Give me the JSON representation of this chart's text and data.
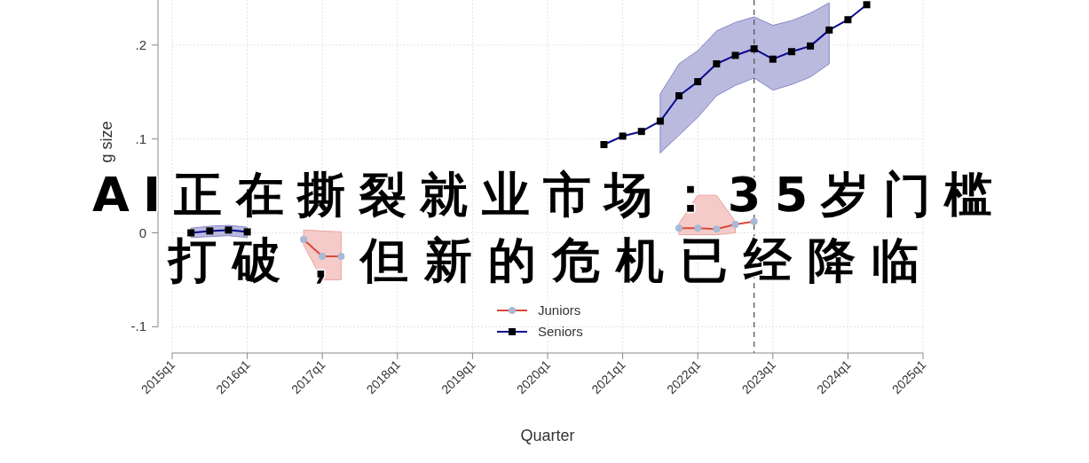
{
  "chart_data": {
    "type": "line",
    "title": "AI正在撕裂就业市场：35岁门槛",
    "subtitle": "打破，但新的危机已经降临",
    "xlabel": "Quarter",
    "ylabel": "g size",
    "xlim": [
      "2015-01",
      "2025-01"
    ],
    "ylim": [
      -0.128,
      0.248
    ],
    "xticks": [
      {
        "value": "2015-01",
        "label": "2015q1"
      },
      {
        "value": "2016-01",
        "label": "2016q1"
      },
      {
        "value": "2017-01",
        "label": "2017q1"
      },
      {
        "value": "2018-01",
        "label": "2018q1"
      },
      {
        "value": "2019-01",
        "label": "2019q1"
      },
      {
        "value": "2020-01",
        "label": "2020q1"
      },
      {
        "value": "2021-01",
        "label": "2021q1"
      },
      {
        "value": "2022-01",
        "label": "2022q1"
      },
      {
        "value": "2023-01",
        "label": "2023q1"
      },
      {
        "value": "2024-01",
        "label": "2024q1"
      },
      {
        "value": "2025-01",
        "label": "2025q1"
      }
    ],
    "yticks": [
      {
        "value": -0.1,
        "label": "-.1"
      },
      {
        "value": 0,
        "label": "0"
      },
      {
        "value": 0.1,
        "label": ".1"
      },
      {
        "value": 0.2,
        "label": ".2"
      }
    ],
    "grid": true,
    "legend": "bottom",
    "line_style": "solid",
    "ref_lines": [
      {
        "axis": "x",
        "value": "2022-10",
        "color": "#555555",
        "line_style": "dashed"
      }
    ],
    "series": [
      {
        "name": "Juniors",
        "color": "#d9473b",
        "marker": "circle",
        "x": [
          "2016-10",
          "2017-01",
          "2017-04",
          "2017-07",
          "2021-10",
          "2022-01",
          "2022-04",
          "2022-07",
          "2022-10"
        ],
        "values": [
          -0.007,
          -0.025,
          -0.025,
          null,
          0.005,
          0.005,
          0.004,
          0.009,
          0.012
        ],
        "lower": [
          -0.013,
          -0.05,
          -0.05,
          null,
          -0.002,
          -0.002,
          -0.002,
          0,
          null
        ],
        "upper": [
          0.003,
          0.002,
          0.001,
          null,
          0.01,
          0.04,
          0.04,
          0.012,
          null
        ]
      },
      {
        "name": "Seniors",
        "color": "#0a0a8c",
        "marker": "square",
        "x": [
          "2015-04",
          "2015-07",
          "2015-10",
          "2016-01",
          "2016-04",
          "2020-10",
          "2021-01",
          "2021-04",
          "2021-07",
          "2021-10",
          "2022-01",
          "2022-04",
          "2022-07",
          "2022-10",
          "2023-01",
          "2023-04",
          "2023-07",
          "2023-10",
          "2024-01",
          "2024-04"
        ],
        "values": [
          0,
          0.002,
          0.003,
          0.001,
          null,
          0.094,
          0.103,
          0.108,
          0.119,
          0.146,
          0.161,
          0.18,
          0.189,
          0.196,
          0.185,
          0.193,
          0.199,
          0.216,
          0.227,
          0.243
        ],
        "lower": [
          -0.005,
          -0.004,
          -0.003,
          -0.005,
          null,
          null,
          null,
          null,
          0.085,
          0.104,
          0.123,
          0.146,
          0.157,
          0.165,
          0.152,
          0.158,
          0.166,
          0.18,
          null,
          null
        ],
        "upper": [
          0.005,
          0.007,
          0.008,
          0.006,
          null,
          null,
          null,
          null,
          0.148,
          0.18,
          0.194,
          0.215,
          0.224,
          0.23,
          0.221,
          0.226,
          0.234,
          0.245,
          null,
          null
        ]
      }
    ]
  }
}
